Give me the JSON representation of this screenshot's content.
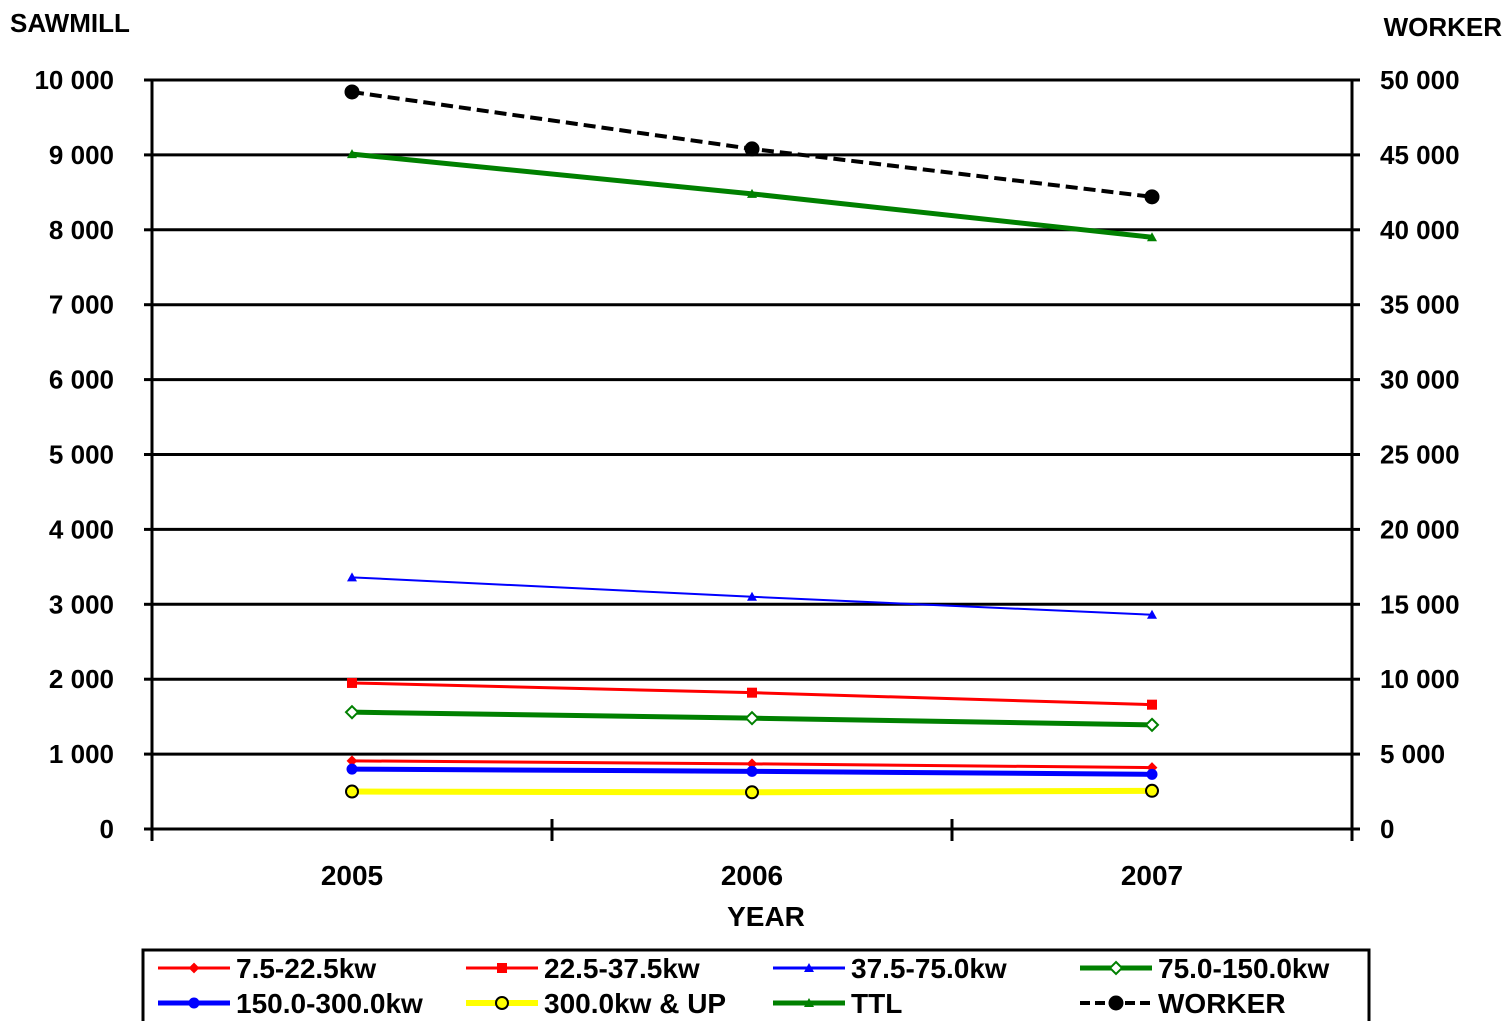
{
  "chart_data": {
    "type": "line",
    "title": "",
    "xlabel": "YEAR",
    "ylabel": "SAWMILL",
    "y2label": "WORKER",
    "categories": [
      "2005",
      "2006",
      "2007"
    ],
    "ylim": [
      0,
      10000
    ],
    "y2lim": [
      0,
      50000
    ],
    "y_ticks": [
      "0",
      "1 000",
      "2 000",
      "3 000",
      "4 000",
      "5 000",
      "6 000",
      "7 000",
      "8 000",
      "9 000",
      "10 000"
    ],
    "y2_ticks": [
      "0",
      "5 000",
      "10 000",
      "15 000",
      "20 000",
      "25 000",
      "30 000",
      "35 000",
      "40 000",
      "45 000",
      "50 000"
    ],
    "grid": true,
    "legend_position": "bottom",
    "series": [
      {
        "name": "7.5-22.5kw",
        "axis": "left",
        "color": "#ff0000",
        "marker": "diamond",
        "values": [
          910,
          870,
          820
        ]
      },
      {
        "name": "22.5-37.5kw",
        "axis": "left",
        "color": "#ff0000",
        "marker": "square",
        "values": [
          1950,
          1820,
          1660
        ]
      },
      {
        "name": "37.5-75.0kw",
        "axis": "left",
        "color": "#0000ff",
        "marker": "triangle",
        "values": [
          3360,
          3100,
          2860
        ]
      },
      {
        "name": "75.0-150.0kw",
        "axis": "left",
        "color": "#008000",
        "marker": "open-diamond",
        "values": [
          1560,
          1480,
          1390
        ]
      },
      {
        "name": "150.0-300.0kw",
        "axis": "left",
        "color": "#0000ff",
        "marker": "circle",
        "values": [
          800,
          770,
          730
        ]
      },
      {
        "name": "300.0kw & UP",
        "axis": "left",
        "color": "#ffff00",
        "marker": "open-circle",
        "values": [
          500,
          490,
          510
        ]
      },
      {
        "name": "TTL",
        "axis": "left",
        "color": "#008000",
        "marker": "triangle",
        "values": [
          9010,
          8480,
          7900
        ]
      },
      {
        "name": "WORKER",
        "axis": "right",
        "color": "#000000",
        "marker": "circle",
        "dashed": true,
        "values": [
          49200,
          45400,
          42200
        ]
      }
    ]
  }
}
